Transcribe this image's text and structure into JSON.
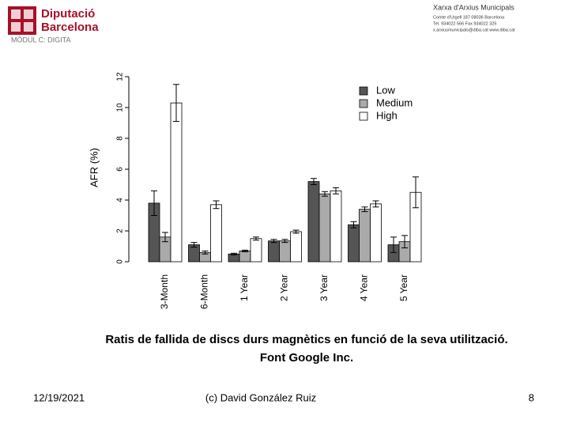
{
  "header": {
    "org": [
      "Diputació",
      "Barcelona"
    ],
    "network": "Xarxa d'Arxius Municipals",
    "address": [
      "Comte d'Urgell 187  08036 Barcelona",
      "Tel. 934022 566  Fax 934022 325",
      "x.arxiusmunicipals@diba.cat  www.diba.cat"
    ],
    "module": "MÒDUL C: DIGITA"
  },
  "chart_data": {
    "type": "bar",
    "ylabel": "AFR (%)",
    "categories": [
      "3-Month",
      "6-Month",
      "1 Year",
      "2 Year",
      "3 Year",
      "4 Year",
      "5 Year"
    ],
    "series": [
      {
        "name": "Low",
        "color": "#555555",
        "values": [
          3.8,
          1.1,
          0.5,
          1.35,
          5.2,
          2.4,
          1.1
        ],
        "errors": [
          0.8,
          0.15,
          0.05,
          0.1,
          0.2,
          0.2,
          0.5
        ]
      },
      {
        "name": "Medium",
        "color": "#aaaaaa",
        "values": [
          1.6,
          0.6,
          0.7,
          1.35,
          4.4,
          3.4,
          1.3
        ],
        "errors": [
          0.3,
          0.1,
          0.05,
          0.1,
          0.15,
          0.15,
          0.4
        ]
      },
      {
        "name": "High",
        "color": "#ffffff",
        "values": [
          10.3,
          3.7,
          1.5,
          1.95,
          4.6,
          3.75,
          4.5
        ],
        "errors": [
          1.2,
          0.25,
          0.1,
          0.1,
          0.2,
          0.2,
          1.0
        ]
      }
    ],
    "ylim": [
      0,
      12
    ],
    "yticks": [
      0,
      2,
      4,
      6,
      8,
      10,
      12
    ],
    "legend": "top-right"
  },
  "caption": [
    "Ratis de fallida de discs durs magnètics en funció de la seva utilització.",
    "Font Google Inc."
  ],
  "footer": {
    "date": "12/19/2021",
    "author": "(c) David González Ruiz",
    "page": "8"
  }
}
